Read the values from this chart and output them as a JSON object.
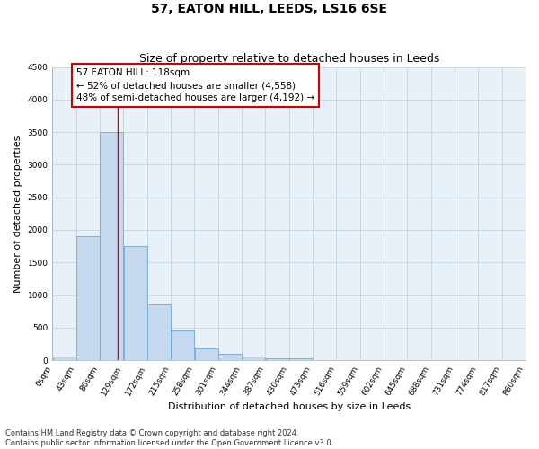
{
  "title": "57, EATON HILL, LEEDS, LS16 6SE",
  "subtitle": "Size of property relative to detached houses in Leeds",
  "xlabel": "Distribution of detached houses by size in Leeds",
  "ylabel": "Number of detached properties",
  "bin_edges": [
    0,
    43,
    86,
    129,
    172,
    215,
    258,
    301,
    344,
    387,
    430,
    473,
    516,
    559,
    602,
    645,
    688,
    731,
    774,
    817,
    860
  ],
  "bar_heights": [
    50,
    1900,
    3500,
    1750,
    850,
    450,
    175,
    100,
    60,
    35,
    35,
    0,
    0,
    0,
    0,
    0,
    0,
    0,
    0,
    0
  ],
  "bar_color": "#c5d8ee",
  "bar_edge_color": "#6aaad4",
  "grid_color": "#c8d8ea",
  "background_color": "#e8f0f8",
  "property_line_x": 118,
  "property_line_color": "#cc0000",
  "annotation_text": "57 EATON HILL: 118sqm\n← 52% of detached houses are smaller (4,558)\n48% of semi-detached houses are larger (4,192) →",
  "annotation_box_color": "#ffffff",
  "annotation_box_edge": "#cc0000",
  "ylim": [
    0,
    4500
  ],
  "xlim": [
    0,
    860
  ],
  "tick_labels": [
    "0sqm",
    "43sqm",
    "86sqm",
    "129sqm",
    "172sqm",
    "215sqm",
    "258sqm",
    "301sqm",
    "344sqm",
    "387sqm",
    "430sqm",
    "473sqm",
    "516sqm",
    "559sqm",
    "602sqm",
    "645sqm",
    "688sqm",
    "731sqm",
    "774sqm",
    "817sqm",
    "860sqm"
  ],
  "footer_line1": "Contains HM Land Registry data © Crown copyright and database right 2024.",
  "footer_line2": "Contains public sector information licensed under the Open Government Licence v3.0.",
  "title_fontsize": 10,
  "subtitle_fontsize": 9,
  "axis_label_fontsize": 8,
  "tick_fontsize": 6.5,
  "annotation_fontsize": 7.5,
  "footer_fontsize": 6
}
